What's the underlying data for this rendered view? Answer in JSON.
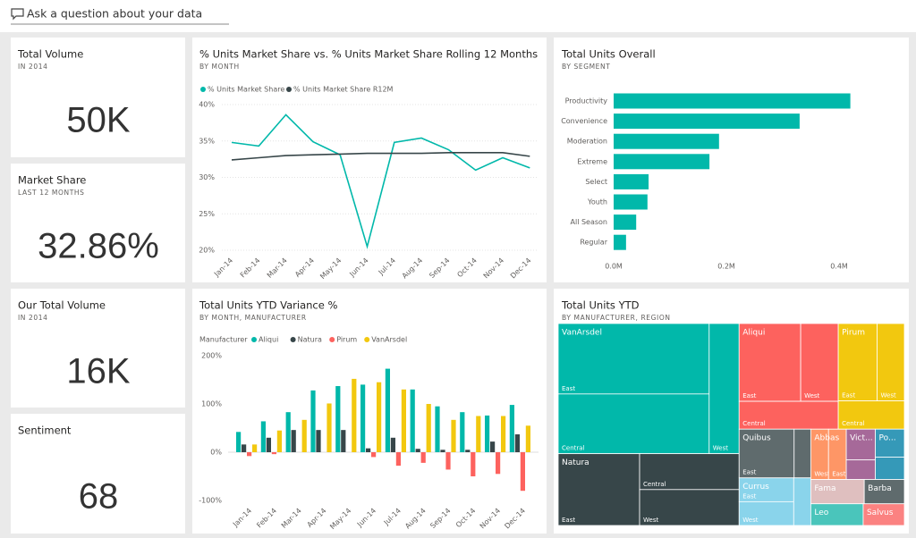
{
  "search_placeholder": "Ask a question about your data",
  "chart_data": [
    {
      "type": "card",
      "title": "Total Volume",
      "subtitle": "IN 2014",
      "value": "50K"
    },
    {
      "type": "card",
      "title": "Market Share",
      "subtitle": "LAST 12 MONTHS",
      "value": "32.86%"
    },
    {
      "type": "card",
      "title": "Our Total Volume",
      "subtitle": "IN 2014",
      "value": "16K"
    },
    {
      "type": "card",
      "title": "Sentiment",
      "value": "68"
    },
    {
      "type": "line",
      "title": "% Units Market Share vs. % Units Market Share Rolling 12 Months",
      "subtitle": "BY MONTH",
      "categories": [
        "Jan-14",
        "Feb-14",
        "Mar-14",
        "Apr-14",
        "May-14",
        "Jun-14",
        "Jul-14",
        "Aug-14",
        "Sep-14",
        "Oct-14",
        "Nov-14",
        "Dec-14"
      ],
      "series": [
        {
          "name": "% Units Market Share",
          "color": "#01b8aa",
          "values": [
            34.8,
            34.3,
            38.6,
            34.9,
            33.1,
            20.5,
            34.8,
            35.4,
            33.8,
            31.0,
            32.7,
            31.3
          ]
        },
        {
          "name": "% Units Market Share R12M",
          "color": "#374649",
          "values": [
            32.4,
            32.7,
            33.0,
            33.1,
            33.2,
            33.3,
            33.3,
            33.3,
            33.4,
            33.4,
            33.4,
            32.9
          ]
        }
      ],
      "ylim": [
        20,
        40
      ],
      "yticks": [
        {
          "value": 20,
          "label": "20%"
        },
        {
          "value": 25,
          "label": "25%"
        },
        {
          "value": 30,
          "label": "30%"
        },
        {
          "value": 35,
          "label": "35%"
        },
        {
          "value": 40,
          "label": "40%"
        }
      ],
      "grid": true
    },
    {
      "type": "bar",
      "orientation": "horizontal",
      "title": "Total Units Overall",
      "subtitle": "BY SEGMENT",
      "categories": [
        "Productivity",
        "Convenience",
        "Moderation",
        "Extreme",
        "Select",
        "Youth",
        "All Season",
        "Regular"
      ],
      "values": [
        420000,
        330000,
        187000,
        170000,
        62000,
        60000,
        40000,
        22000
      ],
      "color": "#01b8aa",
      "xlim": [
        0,
        500000
      ],
      "xticks": [
        {
          "value": 0,
          "label": "0.0M"
        },
        {
          "value": 200000,
          "label": "0.2M"
        },
        {
          "value": 400000,
          "label": "0.4M"
        }
      ],
      "grid": false
    },
    {
      "type": "bar",
      "orientation": "vertical",
      "title": "Total Units YTD Variance %",
      "subtitle": "BY MONTH, MANUFACTURER",
      "legend_title": "Manufacturer",
      "categories": [
        "Jan-14",
        "Feb-14",
        "Mar-14",
        "Apr-14",
        "May-14",
        "Jun-14",
        "Jul-14",
        "Aug-14",
        "Sep-14",
        "Oct-14",
        "Nov-14",
        "Dec-14"
      ],
      "series": [
        {
          "name": "Aliqui",
          "color": "#01b8aa",
          "values": [
            42,
            64,
            83,
            128,
            137,
            140,
            173,
            130,
            95,
            83,
            76,
            98
          ]
        },
        {
          "name": "Natura",
          "color": "#374649",
          "values": [
            16,
            30,
            46,
            46,
            46,
            8,
            30,
            7,
            5,
            5,
            22,
            37
          ]
        },
        {
          "name": "Pirum",
          "color": "#fd625e",
          "values": [
            -8,
            -4,
            0,
            0,
            0,
            -10,
            -28,
            -22,
            -36,
            -50,
            -45,
            -80
          ]
        },
        {
          "name": "VanArsdel",
          "color": "#f2c80f",
          "values": [
            16,
            45,
            67,
            101,
            152,
            145,
            130,
            100,
            67,
            75,
            75,
            55
          ]
        }
      ],
      "ylim": [
        -100,
        200
      ],
      "yticks": [
        {
          "value": -100,
          "label": "-100%"
        },
        {
          "value": 0,
          "label": "0%"
        },
        {
          "value": 100,
          "label": "100%"
        },
        {
          "value": 200,
          "label": "200%"
        }
      ],
      "grid": false
    },
    {
      "type": "treemap",
      "title": "Total Units YTD",
      "subtitle": "BY MANUFACTURER, REGION",
      "manufacturers": [
        {
          "name": "VanArsdel",
          "color": "#01b8aa",
          "regions": [
            {
              "name": "East",
              "value": 13100
            },
            {
              "name": "Central",
              "value": 11100
            },
            {
              "name": "West",
              "value": 4800
            }
          ]
        },
        {
          "name": "Natura",
          "color": "#374649",
          "regions": [
            {
              "name": "East",
              "value": 7200
            },
            {
              "name": "Central",
              "value": 4400
            },
            {
              "name": "West",
              "value": 4400
            }
          ]
        },
        {
          "name": "Aliqui",
          "color": "#fd625e",
          "regions": [
            {
              "name": "East",
              "value": 5900
            },
            {
              "name": "West",
              "value": 3600
            },
            {
              "name": "Central",
              "value": 3400
            }
          ]
        },
        {
          "name": "Pirum",
          "color": "#f2c80f",
          "regions": [
            {
              "name": "East",
              "value": 3700
            },
            {
              "name": "West",
              "value": 2600
            },
            {
              "name": "Central",
              "value": 2300
            }
          ]
        },
        {
          "name": "Quibus",
          "color": "#5f6b6d",
          "regions": [
            {
              "name": "East",
              "value": 3300
            },
            {
              "name": null,
              "value": 1000
            }
          ]
        },
        {
          "name": "Currus",
          "color": "#8ad4eb",
          "regions": [
            {
              "name": "East",
              "value": 1600
            },
            {
              "name": "West",
              "value": 1600
            },
            {
              "name": null,
              "value": 1000
            }
          ]
        },
        {
          "name": "Abbas",
          "color": "#fe9666",
          "regions": [
            {
              "name": "West",
              "value": 1100
            },
            {
              "name": "East",
              "value": 1100
            }
          ]
        },
        {
          "name": "Vict...",
          "color": "#a66999",
          "regions": [
            {
              "name": null,
              "value": 1100
            },
            {
              "name": null,
              "value": 700
            }
          ]
        },
        {
          "name": "Po...",
          "color": "#3599b8",
          "regions": [
            {
              "name": null,
              "value": 1000
            },
            {
              "name": null,
              "value": 800
            }
          ]
        },
        {
          "name": "Fama",
          "color": "#dfbfbf",
          "regions": [
            {
              "name": null,
              "value": 1600
            }
          ]
        },
        {
          "name": "Barba",
          "color": "#5f6b6d",
          "regions": [
            {
              "name": null,
              "value": 1200
            }
          ]
        },
        {
          "name": "Leo",
          "color": "#4ac5bb",
          "regions": [
            {
              "name": null,
              "value": 1400
            }
          ]
        },
        {
          "name": "Salvus",
          "color": "#fb8281",
          "regions": [
            {
              "name": null,
              "value": 1100
            }
          ]
        }
      ]
    }
  ]
}
